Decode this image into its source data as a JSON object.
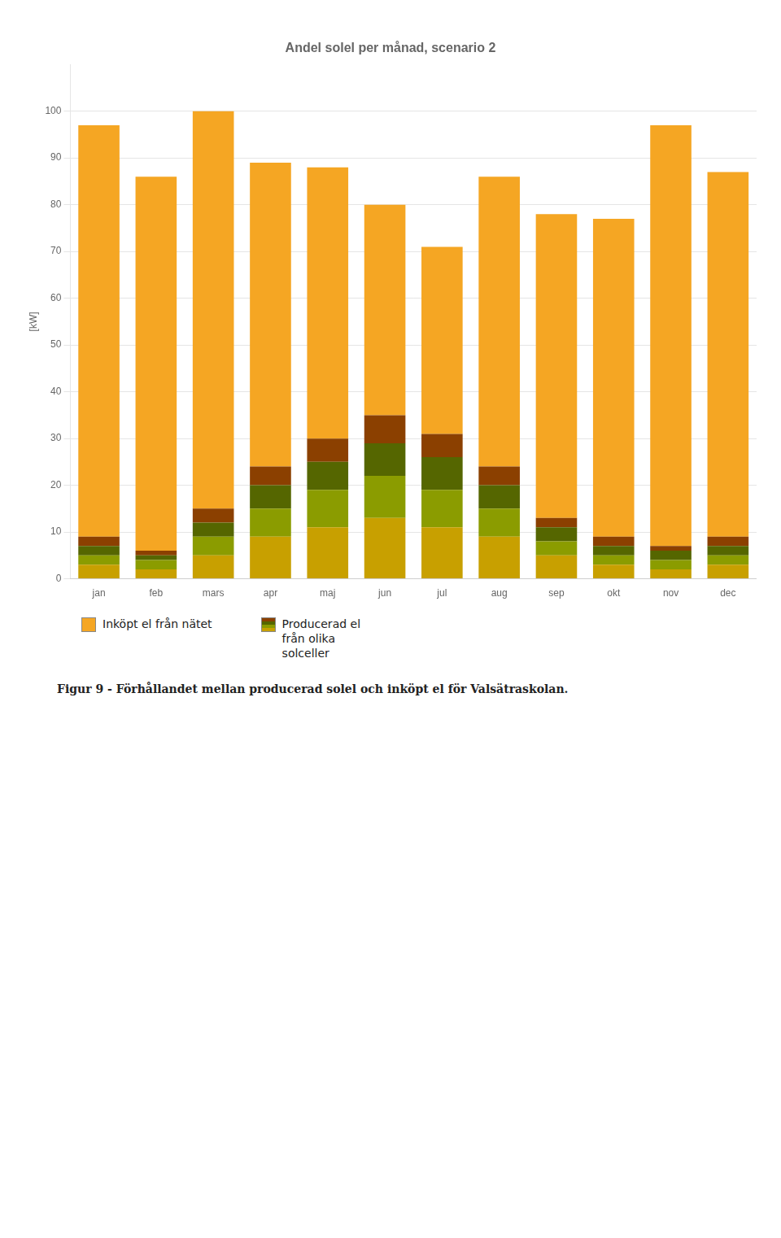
{
  "chart_data": {
    "type": "bar",
    "stacked": true,
    "title": "Andel solel per månad, scenario 2",
    "y_label": "[kW]",
    "categories": [
      "jan",
      "feb",
      "mars",
      "apr",
      "maj",
      "jun",
      "jul",
      "aug",
      "sep",
      "okt",
      "nov",
      "dec"
    ],
    "series": [
      {
        "name": "Producerad el\nfrån olika\nsolceller",
        "color": "#c8a000",
        "values": [
          3,
          2,
          5,
          9,
          11,
          13,
          11,
          9,
          5,
          3,
          2,
          3
        ]
      },
      {
        "color": "#8b9c00",
        "values": [
          2,
          2,
          4,
          6,
          8,
          9,
          8,
          6,
          3,
          2,
          2,
          2
        ]
      },
      {
        "color": "#556600",
        "values": [
          2,
          1,
          3,
          5,
          6,
          7,
          7,
          5,
          3,
          2,
          2,
          2
        ]
      },
      {
        "color": "#8b4000",
        "values": [
          2,
          1,
          3,
          4,
          5,
          6,
          5,
          4,
          2,
          2,
          1,
          2
        ]
      },
      {
        "name": "Inköpt el från nätet",
        "color": "#f5a623",
        "values": [
          88,
          80,
          85,
          65,
          58,
          45,
          40,
          62,
          65,
          68,
          90,
          78
        ]
      }
    ],
    "ylim": [
      0,
      110
    ],
    "yticks": [
      0,
      10,
      20,
      30,
      40,
      50,
      60,
      70,
      80,
      90,
      100
    ],
    "grid": true,
    "legend": "bottom",
    "annotations": [
      "Figur 9 - Förhållandet mellan producerad solel och inköpt el för Valsätraskolan."
    ]
  }
}
